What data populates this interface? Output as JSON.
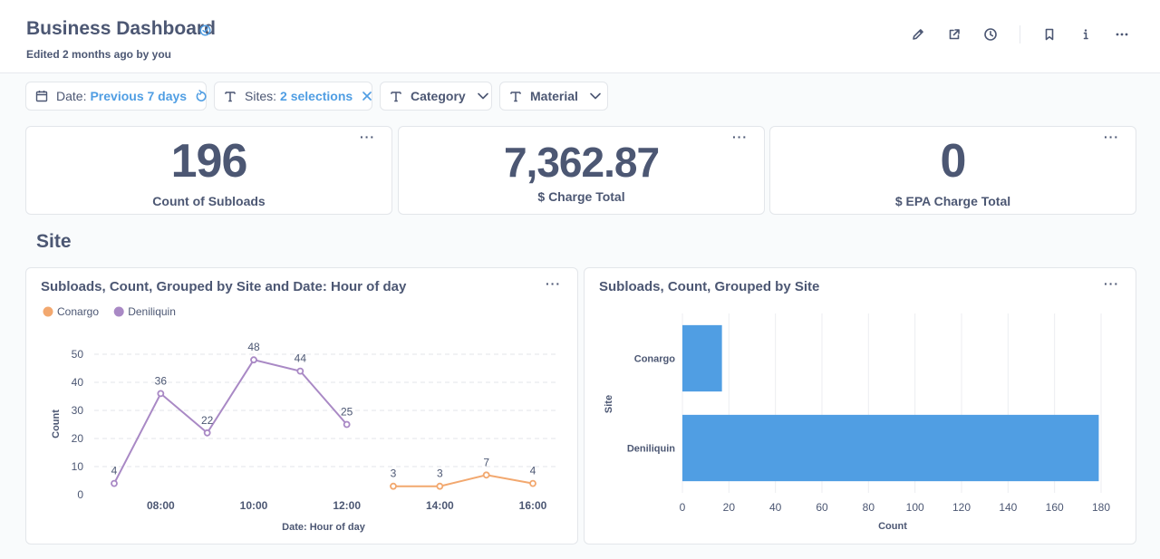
{
  "header": {
    "title": "Business Dashboard",
    "subtitle": "Edited 2 months ago by you",
    "icons": [
      "pencil-icon",
      "share-icon",
      "clock-icon",
      "bookmark-icon",
      "info-icon",
      "more-icon"
    ]
  },
  "filters": {
    "date": {
      "label": "Date:",
      "value": "Previous 7 days"
    },
    "sites": {
      "label": "Sites:",
      "value": "2 selections"
    },
    "category": {
      "label": "Category"
    },
    "material": {
      "label": "Material"
    }
  },
  "scalars": [
    {
      "value": "196",
      "label": "Count of Subloads"
    },
    {
      "value": "7,362.87",
      "label": "$ Charge Total"
    },
    {
      "value": "0",
      "label": "$ EPA Charge Total"
    }
  ],
  "section_title": "Site",
  "more_label": "···",
  "colors": {
    "accent": "#509ee3",
    "conargo": "#f2a86f",
    "deniliquin": "#a989c5",
    "text": "#4c5773"
  },
  "chart_data": [
    {
      "type": "line",
      "title": "Subloads, Count, Grouped by Site and Date: Hour of day",
      "xlabel": "Date: Hour of day",
      "ylabel": "Count",
      "ylim": [
        0,
        50
      ],
      "yticks": [
        0,
        10,
        20,
        30,
        40,
        50
      ],
      "xlim": [
        7,
        16
      ],
      "xticks": [
        {
          "value": 8,
          "label": "08:00"
        },
        {
          "value": 10,
          "label": "10:00"
        },
        {
          "value": 12,
          "label": "12:00"
        },
        {
          "value": 14,
          "label": "14:00"
        },
        {
          "value": 16,
          "label": "16:00"
        }
      ],
      "legend": "top-left",
      "series": [
        {
          "name": "Conargo",
          "color": "#f2a86f",
          "x": [
            13,
            14,
            15,
            16
          ],
          "values": [
            3,
            3,
            7,
            4
          ]
        },
        {
          "name": "Deniliquin",
          "color": "#a989c5",
          "x": [
            7,
            8,
            9,
            10,
            11,
            12
          ],
          "values": [
            4,
            36,
            22,
            48,
            44,
            25
          ]
        }
      ]
    },
    {
      "type": "bar",
      "orientation": "horizontal",
      "title": "Subloads, Count, Grouped by Site",
      "xlabel": "Count",
      "ylabel": "Site",
      "xlim": [
        0,
        180
      ],
      "xticks": [
        0,
        20,
        40,
        60,
        80,
        100,
        120,
        140,
        160,
        180
      ],
      "categories": [
        "Conargo",
        "Deniliquin"
      ],
      "values": [
        17,
        179
      ],
      "color": "#509ee3"
    }
  ]
}
